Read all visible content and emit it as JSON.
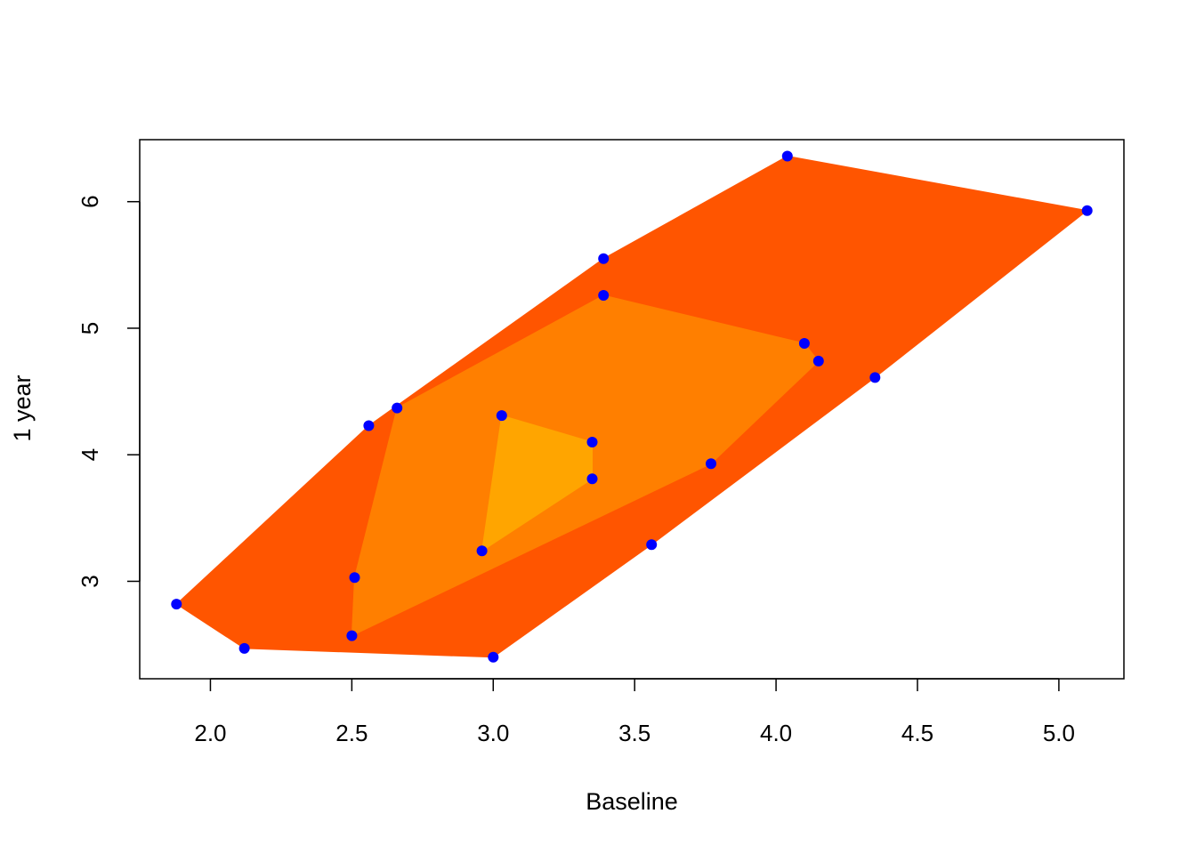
{
  "chart_data": {
    "type": "scatter",
    "title": "",
    "xlabel": "Baseline",
    "ylabel": "1 year",
    "xlim": [
      1.75,
      5.23
    ],
    "ylim": [
      2.23,
      6.49
    ],
    "x_ticks": [
      2.0,
      2.5,
      3.0,
      3.5,
      4.0,
      4.5,
      5.0
    ],
    "x_tick_labels": [
      "2.0",
      "2.5",
      "3.0",
      "3.5",
      "4.0",
      "4.5",
      "5.0"
    ],
    "y_ticks": [
      3,
      4,
      5,
      6
    ],
    "y_tick_labels": [
      "3",
      "4",
      "5",
      "6"
    ],
    "grid": false,
    "points": {
      "color": "#0000ff",
      "x": [
        1.88,
        2.12,
        3.0,
        3.56,
        4.35,
        5.1,
        4.04,
        3.39,
        2.66,
        2.56,
        2.5,
        2.51,
        3.39,
        4.1,
        4.15,
        3.77,
        3.03,
        3.35,
        3.35,
        2.96
      ],
      "y": [
        2.82,
        2.47,
        2.4,
        3.29,
        4.61,
        5.93,
        6.36,
        5.55,
        4.37,
        4.23,
        2.57,
        3.03,
        5.26,
        4.88,
        4.74,
        3.93,
        4.31,
        4.1,
        3.81,
        3.24
      ]
    },
    "regions": [
      {
        "color": "#ff5500",
        "polygon": [
          [
            1.88,
            2.82
          ],
          [
            2.12,
            2.47
          ],
          [
            3.0,
            2.4
          ],
          [
            3.56,
            3.29
          ],
          [
            4.35,
            4.61
          ],
          [
            5.1,
            5.93
          ],
          [
            4.04,
            6.36
          ],
          [
            3.39,
            5.55
          ],
          [
            2.56,
            4.23
          ]
        ]
      },
      {
        "color": "#ff7f00",
        "polygon": [
          [
            2.5,
            2.57
          ],
          [
            3.77,
            3.93
          ],
          [
            4.15,
            4.74
          ],
          [
            4.1,
            4.88
          ],
          [
            3.39,
            5.26
          ],
          [
            2.66,
            4.37
          ],
          [
            2.51,
            3.03
          ]
        ]
      },
      {
        "color": "#ffa500",
        "polygon": [
          [
            3.03,
            4.31
          ],
          [
            3.35,
            4.1
          ],
          [
            3.35,
            3.81
          ],
          [
            2.96,
            3.24
          ]
        ]
      }
    ]
  }
}
